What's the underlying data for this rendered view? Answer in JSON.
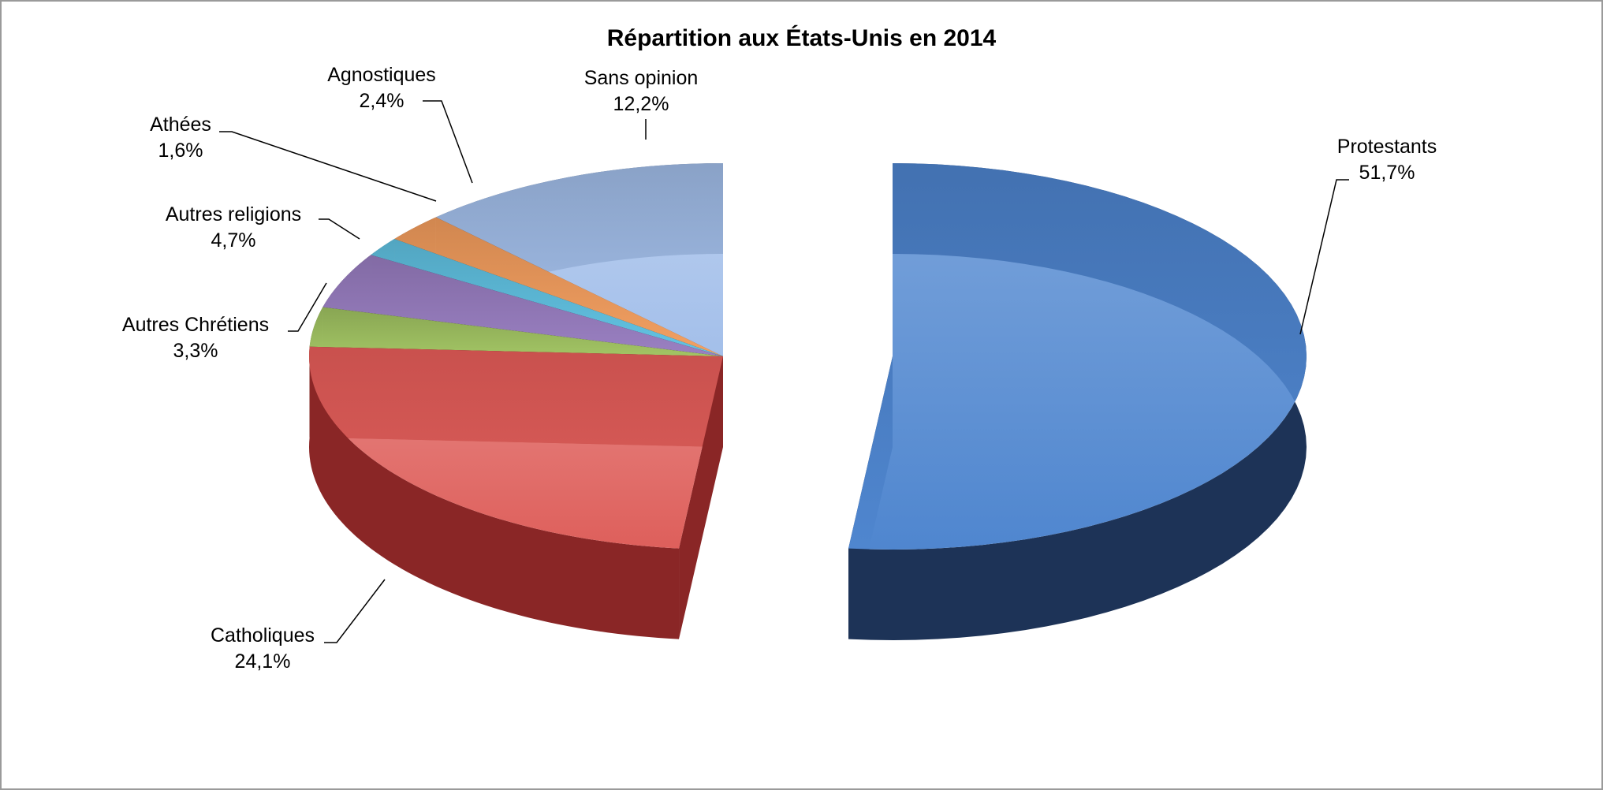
{
  "chart_data": {
    "type": "pie",
    "title": "Répartition aux États-Unis en 2014",
    "style": "3d-exploded",
    "slices": [
      {
        "label": "Protestants",
        "value": 51.7,
        "value_label": "51,7%",
        "color": "#4f86cf",
        "side": "#1d3357"
      },
      {
        "label": "Catholiques",
        "value": 24.1,
        "value_label": "24,1%",
        "color": "#de5f5b",
        "side": "#8a2626"
      },
      {
        "label": "Autres Chrétiens",
        "value": 3.3,
        "value_label": "3,3%",
        "color": "#a2c464",
        "side": "#3b4a1f"
      },
      {
        "label": "Autres religions",
        "value": 4.7,
        "value_label": "4,7%",
        "color": "#9a80c2",
        "side": "#3a2a4a"
      },
      {
        "label": "Athées",
        "value": 1.6,
        "value_label": "1,6%",
        "color": "#63c4e4",
        "side": "#1f4a58"
      },
      {
        "label": "Agnostiques",
        "value": 2.4,
        "value_label": "2,4%",
        "color": "#f3a062",
        "side": "#6b3b18"
      },
      {
        "label": "Sans opinion",
        "value": 12.2,
        "value_label": "12,2%",
        "color": "#a3bfea",
        "side": "#3e4a5e"
      }
    ]
  }
}
